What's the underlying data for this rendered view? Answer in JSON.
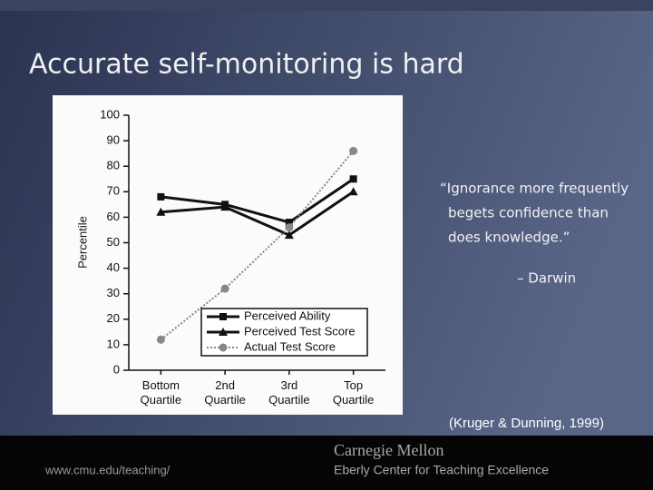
{
  "slide": {
    "title": "Accurate self-monitoring is hard",
    "quote": [
      "“Ignorance more frequently",
      "begets confidence than",
      "does knowledge.”"
    ],
    "attribution": "– Darwin",
    "citation": "(Kruger & Dunning, 1999)",
    "footer_url": "www.cmu.edu/teaching/",
    "footer_org": "Carnegie Mellon",
    "footer_dept": "Eberly Center for Teaching Excellence"
  },
  "chart_data": {
    "type": "line",
    "y_label": "Percentile",
    "categories": [
      "Bottom Quartile",
      "2nd Quartile",
      "3rd Quartile",
      "Top Quartile"
    ],
    "series": [
      {
        "name": "Perceived Ability",
        "color": "#111111",
        "marker": "square",
        "linestyle": "solid",
        "values": [
          68,
          65,
          58,
          75
        ]
      },
      {
        "name": "Perceived Test Score",
        "color": "#111111",
        "marker": "triangle",
        "linestyle": "solid",
        "values": [
          62,
          64,
          53,
          70
        ]
      },
      {
        "name": "Actual Test Score",
        "color": "#888888",
        "marker": "circle",
        "linestyle": "dotted",
        "values": [
          12,
          32,
          56,
          86
        ]
      }
    ],
    "ylim": [
      0,
      100
    ],
    "yticks": [
      0,
      10,
      20,
      30,
      40,
      50,
      60,
      70,
      80,
      90,
      100
    ],
    "legend": "lower center"
  }
}
